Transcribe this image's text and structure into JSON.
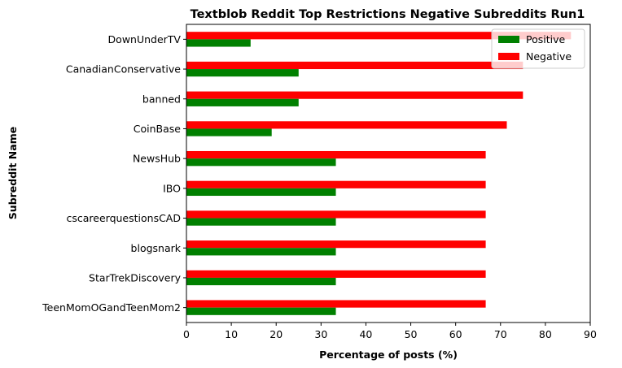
{
  "chart_data": {
    "type": "bar",
    "orientation": "horizontal",
    "title": "Textblob Reddit Top Restrictions Negative Subreddits Run1",
    "xlabel": "Percentage of posts (%)",
    "ylabel": "Subreddit Name",
    "xlim": [
      0,
      90
    ],
    "xticks": [
      "0",
      "10",
      "20",
      "30",
      "40",
      "50",
      "60",
      "70",
      "80",
      "90"
    ],
    "categories": [
      "TeenMomOGandTeenMom2",
      "StarTrekDiscovery",
      "blogsnark",
      "cscareerquestionsCAD",
      "IBO",
      "NewsHub",
      "CoinBase",
      "banned",
      "CanadianConservative",
      "DownUnderTV"
    ],
    "series": [
      {
        "name": "Positive",
        "color": "#008000",
        "values": [
          33.3,
          33.3,
          33.3,
          33.3,
          33.3,
          33.3,
          19.0,
          25.0,
          25.0,
          14.3
        ]
      },
      {
        "name": "Negative",
        "color": "#ff0000",
        "values": [
          66.7,
          66.7,
          66.7,
          66.7,
          66.7,
          66.7,
          71.4,
          75.0,
          75.0,
          85.7
        ]
      }
    ],
    "legend": {
      "position": "top-right"
    },
    "grid": false
  }
}
